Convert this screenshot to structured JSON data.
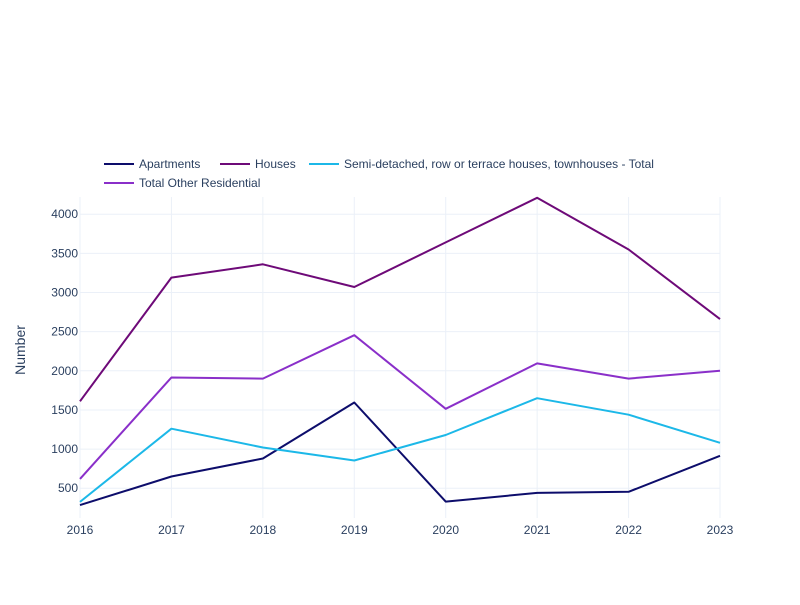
{
  "chart_data": {
    "type": "line",
    "title": "",
    "xlabel": "",
    "ylabel": "Number",
    "x": [
      "2016",
      "2017",
      "2018",
      "2019",
      "2020",
      "2021",
      "2022",
      "2023"
    ],
    "ylim": [
      120,
      4220
    ],
    "yticks": [
      500,
      1000,
      1500,
      2000,
      2500,
      3000,
      3500,
      4000
    ],
    "grid": true,
    "legend_position": "top-left",
    "series": [
      {
        "name": "Apartments",
        "color": "#0d0d6b",
        "values": [
          285,
          650,
          880,
          1595,
          330,
          440,
          455,
          915
        ]
      },
      {
        "name": "Houses",
        "color": "#6e0a78",
        "values": [
          1610,
          3190,
          3360,
          3070,
          3640,
          4210,
          3550,
          2660
        ]
      },
      {
        "name": "Semi-detached, row or terrace houses, townhouses - Total",
        "color": "#1cb8e8",
        "values": [
          325,
          1260,
          1020,
          855,
          1180,
          1650,
          1440,
          1080
        ]
      },
      {
        "name": "Total Other Residential",
        "color": "#8a2fc9",
        "values": [
          620,
          1915,
          1900,
          2455,
          1515,
          2095,
          1900,
          2000
        ]
      }
    ]
  }
}
